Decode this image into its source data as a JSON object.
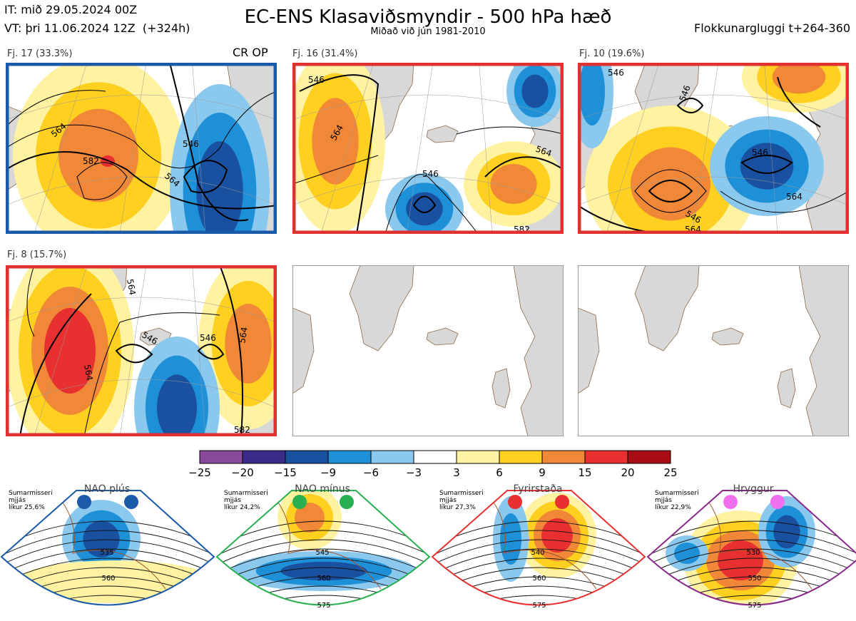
{
  "header": {
    "it_line": "IT: mið 29.05.2024 00Z",
    "vt_line": "VT: þri 11.06.2024 12Z  (+324h)",
    "title": "EC-ENS Klasaviðsmyndir - 500 hPa hæð",
    "subtitle": "Miðað við jún 1981-2010",
    "window": "Flokkunargluggi t+264-360"
  },
  "crop_label": "CR OP",
  "chart_data": [
    {
      "type": "heatmap",
      "name_note": "cluster panels",
      "clusters": [
        {
          "label": "Fj. 17 (33.3%)",
          "members": 17,
          "percent": 33.3,
          "border_color": "#1a5aa8",
          "contour_labels": [
            "546",
            "564",
            "582",
            "546",
            "564"
          ]
        },
        {
          "label": "Fj. 16 (31.4%)",
          "members": 16,
          "percent": 31.4,
          "border_color": "#e03030",
          "contour_labels": [
            "546",
            "564",
            "546",
            "564",
            "582"
          ]
        },
        {
          "label": "Fj. 10 (19.6%)",
          "members": 10,
          "percent": 19.6,
          "border_color": "#e03030",
          "contour_labels": [
            "546",
            "546",
            "546",
            "564",
            "546",
            "564"
          ]
        },
        {
          "label": "Fj. 8 (15.7%)",
          "members": 8,
          "percent": 15.7,
          "border_color": "#e03030",
          "contour_labels": [
            "546",
            "546",
            "564",
            "564",
            "564",
            "582"
          ]
        }
      ],
      "empty_panels": 2
    },
    {
      "type": "colorbar",
      "ticks": [
        "−25",
        "−20",
        "−15",
        "−9",
        "−6",
        "−3",
        "3",
        "6",
        "9",
        "15",
        "20",
        "25"
      ],
      "colors": [
        "#8a4a9a",
        "#3a2a8a",
        "#1a50a0",
        "#1e90d8",
        "#8ac8ee",
        "#ffffff",
        "#fff2a0",
        "#ffd020",
        "#f08838",
        "#e83030",
        "#a80c14"
      ]
    },
    {
      "type": "regimes",
      "items": [
        {
          "name": "NAO plús",
          "line1": "Sumarmisseri",
          "line2": "mjjás",
          "line3": "líkur 25,6%",
          "dot_color": "#1a5aa8",
          "border_color": "#1a5aa8",
          "contours": [
            "535",
            "560"
          ]
        },
        {
          "name": "NAO mínus",
          "line1": "Sumarmisseri",
          "line2": "mjjás",
          "line3": "líkur 24,2%",
          "dot_color": "#28b050",
          "border_color": "#28b050",
          "contours": [
            "545",
            "560",
            "575"
          ]
        },
        {
          "name": "Fyrirstaða",
          "line1": "Sumarmisseri",
          "line2": "mjjás",
          "line3": "líkur 27,3%",
          "dot_color": "#e83030",
          "border_color": "#e83030",
          "contours": [
            "540",
            "560",
            "575"
          ]
        },
        {
          "name": "Hryggur",
          "line1": "Sumarmisseri",
          "line2": "mjjás",
          "line3": "líkur 22,9%",
          "dot_color": "#ee70ee",
          "border_color": "#8a2a8a",
          "contours": [
            "530",
            "550",
            "575"
          ]
        }
      ]
    }
  ]
}
